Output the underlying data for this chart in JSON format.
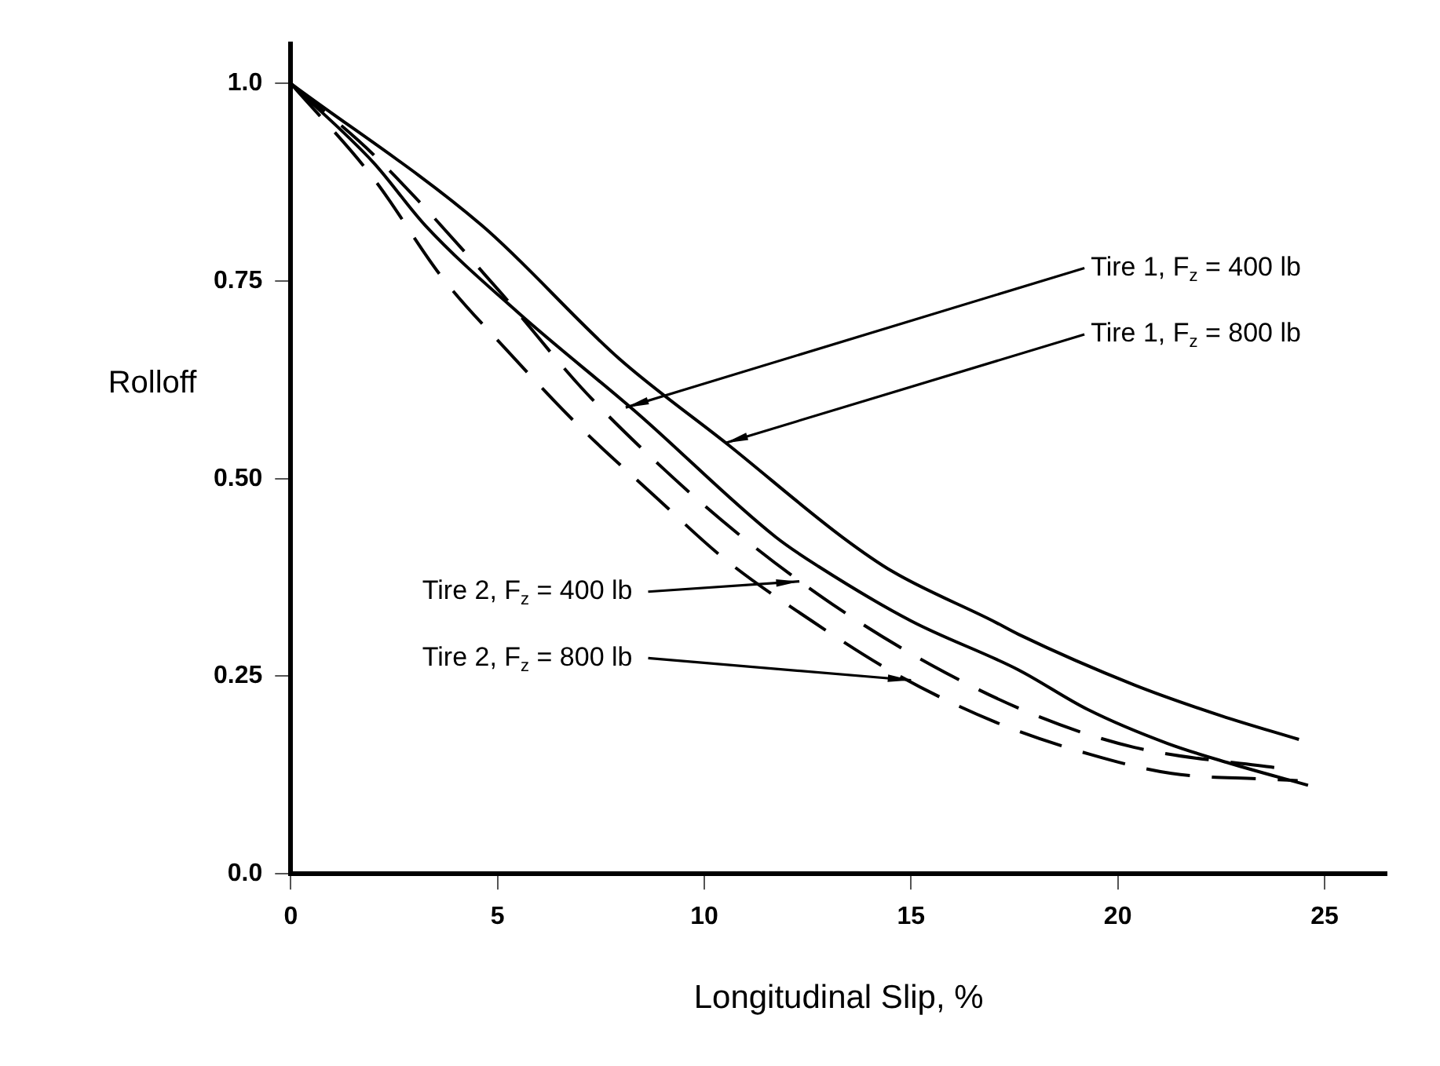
{
  "chart_data": {
    "type": "line",
    "xlabel": "Longitudinal Slip, %",
    "ylabel": "Rolloff",
    "xlim": [
      0,
      26.5
    ],
    "xticks": [
      0,
      5,
      10,
      15,
      20,
      25
    ],
    "ylim": [
      0,
      1.05
    ],
    "yticks": [
      {
        "value": 0,
        "label": "0.0"
      },
      {
        "value": 1,
        "label": "1.0"
      },
      0.75,
      {
        "value": 0.5,
        "label": "0.50"
      },
      0.25
    ],
    "grid": false,
    "legend": false,
    "marker": "none",
    "series": [
      {
        "color": "#000000",
        "line_style": "solid",
        "x": [
          0,
          4.63,
          7.96,
          10.6,
          13.34,
          14.57,
          16.98,
          17.6,
          20.4,
          22.5,
          24.38
        ],
        "values": [
          1.0,
          0.82,
          0.651,
          0.542,
          0.426,
          0.382,
          0.32,
          0.303,
          0.239,
          0.2,
          0.17
        ]
      },
      {
        "color": "#000000",
        "line_style": "solid",
        "x": [
          0,
          2,
          3.26,
          5.5,
          8.4,
          11.73,
          12.76,
          15,
          17.6,
          19.27,
          21.2,
          22.7,
          24.6
        ],
        "values": [
          1.0,
          0.9,
          0.82,
          0.71,
          0.582,
          0.426,
          0.389,
          0.32,
          0.258,
          0.208,
          0.165,
          0.14,
          0.112
        ]
      },
      {
        "color": "#000000",
        "line_style": "dashed",
        "x": [
          0,
          2,
          5,
          7.03,
          8.9,
          10.8,
          13.1,
          15.5,
          18.04,
          20.4,
          24.0
        ],
        "values": [
          1.0,
          0.91,
          0.74,
          0.615,
          0.518,
          0.431,
          0.341,
          0.264,
          0.2,
          0.16,
          0.133
        ]
      },
      {
        "color": "#000000",
        "line_style": "dashed",
        "x": [
          0,
          2,
          3.67,
          5.2,
          7.0,
          8.78,
          10.5,
          12.6,
          14.7,
          17.04,
          19.34,
          21.3,
          23.5,
          24.35
        ],
        "values": [
          1.0,
          0.88,
          0.754,
          0.664,
          0.565,
          0.479,
          0.398,
          0.32,
          0.251,
          0.192,
          0.151,
          0.127,
          0.12,
          0.118
        ]
      }
    ],
    "annotations": [
      {
        "text": "Tire 1, F$_{z}$ = 400 lb",
        "x": 8.1,
        "y": 0.59
      },
      {
        "text": "Tire 1, F$_{z}$ = 800 lb",
        "x": 10.5,
        "y": 0.545
      },
      {
        "text": "Tire 2, F$_{z}$ = 400 lb",
        "x": 12.3,
        "y": 0.37
      },
      {
        "text": "Tire 2, F$_{z}$ = 800 lb",
        "x": 15,
        "y": 0.245
      }
    ]
  }
}
